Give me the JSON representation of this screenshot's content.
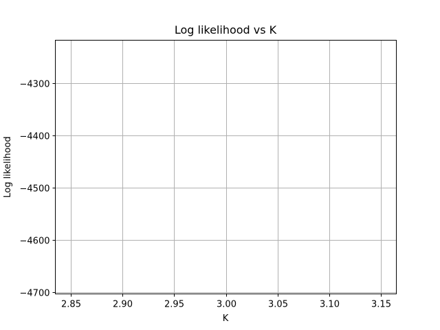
{
  "chart_data": {
    "type": "line",
    "title": "Log likelihood vs K",
    "xlabel": "K",
    "ylabel": "Log likelihood",
    "xlim": [
      2.835,
      3.165
    ],
    "ylim": [
      -4703,
      -4218
    ],
    "xticks": [
      2.85,
      2.9,
      2.95,
      3.0,
      3.05,
      3.1,
      3.15
    ],
    "xtick_labels": [
      "2.85",
      "2.90",
      "2.95",
      "3.00",
      "3.05",
      "3.10",
      "3.15"
    ],
    "yticks": [
      -4300,
      -4400,
      -4500,
      -4600,
      -4700
    ],
    "ytick_labels": [
      "−4300",
      "−4400",
      "−4500",
      "−4600",
      "−4700"
    ],
    "grid": true,
    "series": [
      {
        "x": [],
        "y": []
      }
    ]
  }
}
